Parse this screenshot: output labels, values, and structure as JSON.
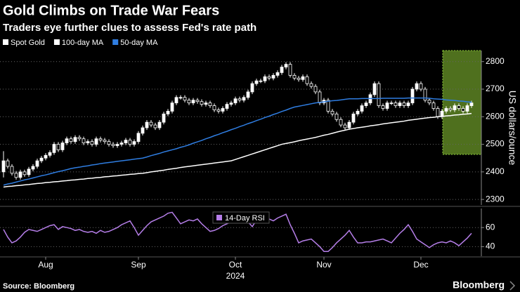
{
  "chart_data": [
    {
      "type": "candlestick",
      "title": "Gold Climbs on Trade War Fears",
      "subtitle": "Traders eye further clues to assess Fed's rate path",
      "y_label": "US dollars/ounce",
      "candle_name": "Spot Gold",
      "up_color": "#ffffff",
      "down_color": "#000000",
      "categories": [
        null,
        null,
        null,
        null,
        null,
        null,
        null,
        null,
        null,
        null,
        null,
        null,
        null,
        null,
        null,
        null,
        null,
        null,
        null,
        null,
        null,
        null,
        null,
        null,
        null,
        null,
        null,
        null,
        null,
        null,
        null,
        null,
        null,
        null,
        null,
        null,
        null,
        null,
        null,
        null,
        null,
        null,
        null,
        null,
        null,
        null,
        null,
        null,
        null,
        null,
        null,
        null,
        null,
        null,
        null,
        null,
        null,
        null,
        null,
        null,
        null,
        null,
        null,
        null,
        null,
        null,
        null,
        null,
        null,
        null,
        null,
        null,
        null,
        null,
        null,
        null,
        null,
        null,
        null,
        null,
        null,
        null,
        null,
        null,
        null,
        null,
        null,
        null,
        null,
        null,
        null,
        null,
        null,
        null,
        null,
        null,
        null,
        null,
        null,
        null,
        null,
        null,
        null,
        null,
        null,
        null,
        null,
        null,
        null,
        null,
        null,
        null
      ],
      "open": [
        2400,
        2440,
        2420,
        2395,
        2380,
        2400,
        2390,
        2410,
        2420,
        2440,
        2450,
        2460,
        2470,
        2500,
        2480,
        2505,
        2520,
        2510,
        2525,
        2520,
        2505,
        2510,
        2500,
        2520,
        2515,
        2510,
        2500,
        2495,
        2500,
        2505,
        2515,
        2500,
        2510,
        2540,
        2560,
        2580,
        2570,
        2560,
        2580,
        2610,
        2620,
        2650,
        2670,
        2670,
        2660,
        2650,
        2660,
        2655,
        2645,
        2650,
        2640,
        2625,
        2620,
        2630,
        2645,
        2650,
        2665,
        2660,
        2670,
        2690,
        2720,
        2730,
        2730,
        2745,
        2740,
        2750,
        2760,
        2780,
        2790,
        2750,
        2740,
        2735,
        2745,
        2720,
        2710,
        2690,
        2650,
        2660,
        2620,
        2610,
        2590,
        2570,
        2560,
        2580,
        2610,
        2620,
        2640,
        2650,
        2680,
        2720,
        2640,
        2630,
        2650,
        2650,
        2640,
        2650,
        2640,
        2650,
        2700,
        2720,
        2700,
        2660,
        2650,
        2630,
        2600,
        2620,
        2630,
        2625,
        2640,
        2630,
        2620,
        2640
      ],
      "high": [
        2475,
        2448,
        2428,
        2403,
        2408,
        2408,
        2418,
        2428,
        2448,
        2458,
        2468,
        2478,
        2508,
        2508,
        2513,
        2528,
        2528,
        2533,
        2533,
        2528,
        2518,
        2518,
        2528,
        2528,
        2523,
        2518,
        2508,
        2508,
        2513,
        2523,
        2523,
        2518,
        2548,
        2568,
        2588,
        2588,
        2578,
        2588,
        2618,
        2628,
        2658,
        2678,
        2678,
        2678,
        2668,
        2668,
        2668,
        2663,
        2658,
        2658,
        2648,
        2633,
        2638,
        2653,
        2658,
        2673,
        2673,
        2678,
        2698,
        2728,
        2738,
        2738,
        2753,
        2753,
        2758,
        2768,
        2788,
        2798,
        2798,
        2758,
        2748,
        2753,
        2753,
        2728,
        2718,
        2698,
        2668,
        2668,
        2628,
        2618,
        2598,
        2578,
        2588,
        2618,
        2628,
        2648,
        2658,
        2688,
        2728,
        2728,
        2648,
        2658,
        2658,
        2658,
        2658,
        2658,
        2658,
        2708,
        2728,
        2728,
        2708,
        2668,
        2658,
        2638,
        2628,
        2638,
        2638,
        2648,
        2648,
        2638,
        2648,
        2658
      ],
      "low": [
        2380,
        2412,
        2387,
        2372,
        2372,
        2382,
        2382,
        2402,
        2412,
        2432,
        2442,
        2452,
        2462,
        2472,
        2472,
        2497,
        2502,
        2502,
        2512,
        2497,
        2497,
        2492,
        2492,
        2507,
        2502,
        2492,
        2487,
        2487,
        2492,
        2497,
        2492,
        2492,
        2502,
        2532,
        2552,
        2562,
        2552,
        2552,
        2572,
        2602,
        2612,
        2642,
        2662,
        2652,
        2642,
        2642,
        2647,
        2637,
        2637,
        2632,
        2617,
        2612,
        2612,
        2622,
        2637,
        2642,
        2652,
        2652,
        2662,
        2682,
        2712,
        2722,
        2722,
        2732,
        2732,
        2742,
        2752,
        2772,
        2742,
        2732,
        2727,
        2727,
        2712,
        2702,
        2682,
        2642,
        2642,
        2612,
        2602,
        2582,
        2562,
        2552,
        2552,
        2572,
        2602,
        2612,
        2632,
        2642,
        2672,
        2632,
        2622,
        2622,
        2642,
        2632,
        2632,
        2632,
        2632,
        2642,
        2692,
        2692,
        2652,
        2642,
        2622,
        2592,
        2592,
        2612,
        2617,
        2617,
        2622,
        2612,
        2612,
        2632
      ],
      "close": [
        2440,
        2420,
        2395,
        2380,
        2400,
        2390,
        2410,
        2420,
        2440,
        2450,
        2460,
        2470,
        2500,
        2480,
        2505,
        2520,
        2510,
        2525,
        2520,
        2505,
        2510,
        2500,
        2520,
        2515,
        2510,
        2500,
        2495,
        2500,
        2505,
        2515,
        2500,
        2510,
        2540,
        2560,
        2580,
        2570,
        2560,
        2580,
        2610,
        2620,
        2650,
        2670,
        2670,
        2660,
        2650,
        2660,
        2655,
        2645,
        2650,
        2640,
        2625,
        2620,
        2630,
        2645,
        2650,
        2665,
        2660,
        2670,
        2690,
        2720,
        2730,
        2730,
        2745,
        2740,
        2750,
        2760,
        2780,
        2790,
        2750,
        2740,
        2735,
        2745,
        2720,
        2710,
        2690,
        2650,
        2660,
        2620,
        2610,
        2590,
        2570,
        2560,
        2580,
        2610,
        2620,
        2640,
        2650,
        2680,
        2720,
        2640,
        2630,
        2650,
        2650,
        2640,
        2650,
        2640,
        2650,
        2700,
        2720,
        2700,
        2660,
        2650,
        2630,
        2600,
        2620,
        2630,
        2625,
        2640,
        2630,
        2620,
        2640,
        2650
      ],
      "series": [
        {
          "name": "100-day MA",
          "color": "#ffffff",
          "values": [
            2345,
            2347,
            2348,
            2350,
            2351,
            2353,
            2354,
            2356,
            2358,
            2359,
            2361,
            2362,
            2364,
            2365,
            2367,
            2368,
            2370,
            2371,
            2373,
            2374,
            2376,
            2377,
            2379,
            2380,
            2382,
            2383,
            2385,
            2386,
            2388,
            2389,
            2391,
            2392,
            2394,
            2395,
            2397,
            2400,
            2402,
            2404,
            2406,
            2409,
            2411,
            2413,
            2416,
            2418,
            2420,
            2422,
            2424,
            2426,
            2428,
            2430,
            2432,
            2434,
            2436,
            2438,
            2440,
            2445,
            2450,
            2455,
            2460,
            2465,
            2470,
            2475,
            2480,
            2485,
            2490,
            2495,
            2500,
            2503,
            2506,
            2509,
            2513,
            2516,
            2519,
            2522,
            2525,
            2529,
            2533,
            2536,
            2540,
            2544,
            2548,
            2551,
            2555,
            2557,
            2560,
            2562,
            2564,
            2567,
            2569,
            2571,
            2574,
            2576,
            2578,
            2580,
            2582,
            2584,
            2587,
            2589,
            2591,
            2593,
            2595,
            2597,
            2598,
            2600,
            2601,
            2603,
            2604,
            2606,
            2607,
            2609,
            2610,
            2612
          ]
        },
        {
          "name": "50-day MA",
          "color": "#2f7de1",
          "values": [
            2352,
            2356,
            2359,
            2363,
            2367,
            2371,
            2374,
            2378,
            2382,
            2386,
            2389,
            2393,
            2397,
            2401,
            2404,
            2408,
            2412,
            2415,
            2417,
            2420,
            2422,
            2425,
            2427,
            2430,
            2432,
            2434,
            2436,
            2438,
            2440,
            2442,
            2444,
            2446,
            2448,
            2450,
            2454,
            2459,
            2463,
            2467,
            2472,
            2476,
            2480,
            2484,
            2489,
            2493,
            2498,
            2504,
            2509,
            2514,
            2520,
            2525,
            2531,
            2536,
            2542,
            2547,
            2553,
            2558,
            2564,
            2569,
            2575,
            2580,
            2586,
            2591,
            2597,
            2602,
            2608,
            2613,
            2619,
            2624,
            2630,
            2635,
            2638,
            2641,
            2644,
            2647,
            2650,
            2652,
            2654,
            2656,
            2658,
            2659,
            2661,
            2663,
            2665,
            2665,
            2665,
            2666,
            2666,
            2666,
            2666,
            2666,
            2667,
            2667,
            2667,
            2667,
            2667,
            2667,
            2668,
            2668,
            2668,
            2668,
            2668,
            2667,
            2665,
            2664,
            2663,
            2661,
            2660,
            2659,
            2657,
            2656,
            2654,
            2653
          ]
        }
      ],
      "ylim": [
        2280,
        2840
      ],
      "yticks": [
        2300,
        2400,
        2500,
        2600,
        2700,
        2800
      ],
      "grid": true
    },
    {
      "type": "line",
      "year_label": "2024",
      "categories": [
        null,
        null,
        null,
        null,
        null,
        null,
        null,
        null,
        null,
        null,
        null,
        null,
        null,
        null,
        null,
        null,
        null,
        null,
        null,
        null,
        null,
        null,
        null,
        null,
        null,
        null,
        null,
        null,
        null,
        null,
        null,
        null,
        null,
        null,
        null,
        null,
        null,
        null,
        null,
        null,
        null,
        null,
        null,
        null,
        null,
        null,
        null,
        null,
        null,
        null,
        null,
        null,
        null,
        null,
        null,
        null,
        null,
        null,
        null,
        null,
        null,
        null,
        null,
        null,
        null,
        null,
        null,
        null,
        null,
        null,
        null,
        null,
        null,
        null,
        null,
        null,
        null,
        null,
        null,
        null,
        null,
        null,
        null,
        null,
        null,
        null,
        null,
        null,
        null,
        null,
        null,
        null,
        null,
        null,
        null,
        null,
        null,
        null,
        null,
        null,
        null,
        null,
        null,
        null,
        null,
        null,
        null,
        null,
        null,
        null,
        null,
        null
      ],
      "series": [
        {
          "name": "14-Day RSI",
          "color": "#b57ee8",
          "values": [
            58,
            50,
            44,
            46,
            50,
            55,
            58,
            57,
            56,
            58,
            60,
            62,
            63,
            58,
            61,
            60,
            59,
            57,
            58,
            56,
            55,
            56,
            54,
            57,
            55,
            56,
            58,
            60,
            63,
            65,
            67,
            60,
            52,
            57,
            62,
            66,
            68,
            70,
            72,
            75,
            76,
            70,
            64,
            66,
            68,
            67,
            69,
            64,
            60,
            56,
            57,
            59,
            62,
            64,
            66,
            67,
            68,
            70,
            66,
            61,
            68,
            74,
            72,
            69,
            67,
            70,
            72,
            74,
            63,
            54,
            44,
            46,
            47,
            48,
            44,
            40,
            35,
            35,
            39,
            44,
            48,
            52,
            57,
            50,
            44,
            44,
            45,
            45,
            46,
            47,
            48,
            46,
            44,
            49,
            54,
            58,
            63,
            56,
            48,
            45,
            42,
            39,
            42,
            44,
            45,
            44,
            46,
            44,
            41,
            45,
            49,
            54
          ]
        }
      ],
      "xticks": [
        {
          "value": 10,
          "label": "Aug"
        },
        {
          "value": 32,
          "label": "Sep"
        },
        {
          "value": 55,
          "label": "Oct"
        },
        {
          "value": 76,
          "label": "Nov"
        },
        {
          "value": 99,
          "label": "Dec"
        }
      ],
      "ylim": [
        30,
        80
      ],
      "yticks": [
        40,
        60
      ],
      "grid": true
    }
  ],
  "source": "Source: Bloomberg",
  "brand": "Bloomberg"
}
